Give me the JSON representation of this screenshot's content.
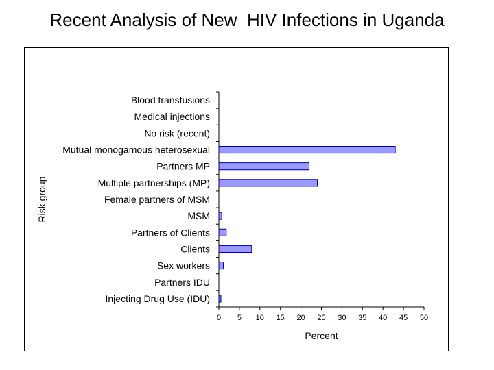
{
  "slide": {
    "title": "Recent Analysis of New  HIV Infections in Uganda"
  },
  "chart_data": {
    "type": "bar",
    "orientation": "horizontal",
    "categories": [
      "Blood transfusions",
      "Medical injections",
      "No risk (recent)",
      "Mutual monogamous heterosexual",
      "Partners MP",
      "Multiple partnerships (MP)",
      "Female partners of MSM",
      "MSM",
      "Partners of Clients",
      "Clients",
      "Sex workers",
      "Partners IDU",
      "Injecting Drug Use (IDU)"
    ],
    "values": [
      0,
      0,
      0,
      43,
      22,
      24,
      0,
      0.7,
      1.8,
      8,
      1.1,
      0,
      0.5
    ],
    "xlabel": "Percent",
    "ylabel": "Risk group",
    "xlim": [
      0,
      50
    ],
    "xticks": [
      "0",
      "5",
      "10",
      "15",
      "20",
      "25",
      "30",
      "35",
      "40",
      "45",
      "50"
    ],
    "grid": false,
    "legend": "none",
    "bar_color": "#9999ff",
    "bar_edge_color": "#000080"
  }
}
